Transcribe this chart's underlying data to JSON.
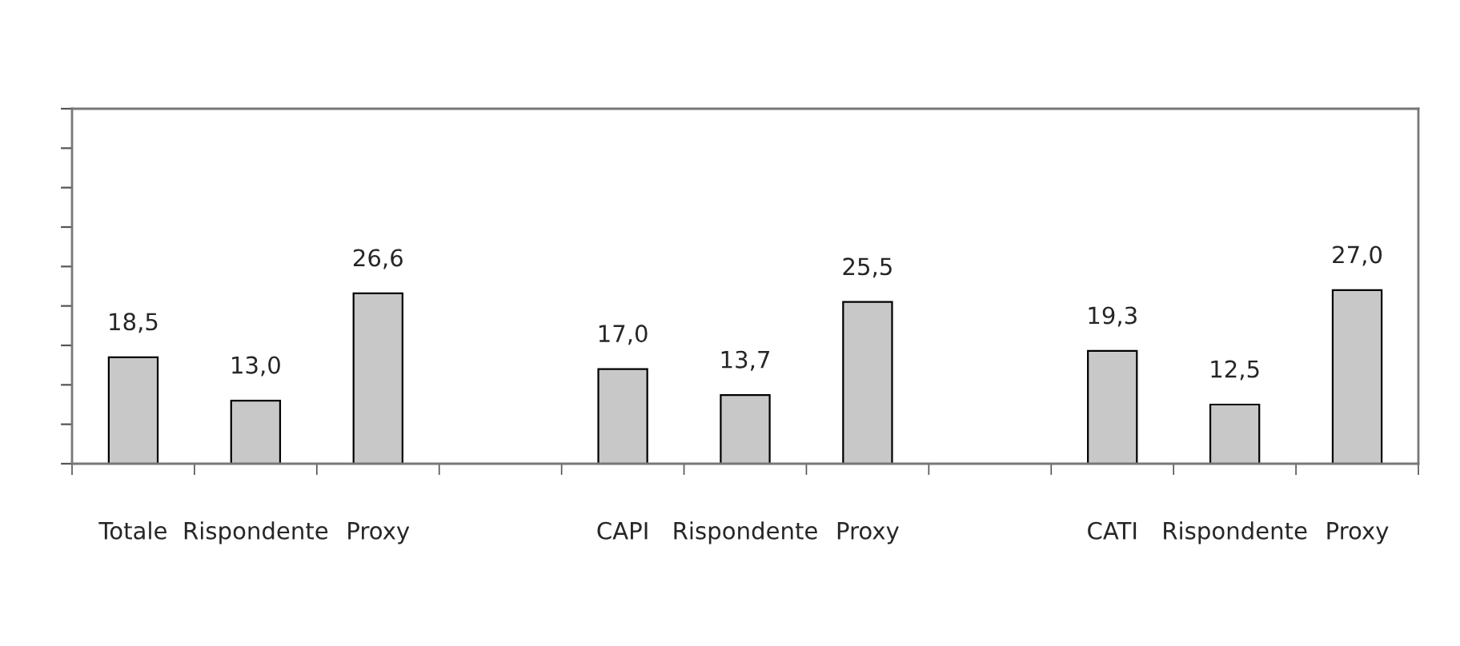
{
  "chart_data": {
    "type": "bar",
    "categories": [
      "Totale",
      "Rispondente",
      "Proxy",
      null,
      "CAPI",
      "Rispondente",
      "Proxy",
      null,
      "CATI",
      "Rispondente",
      "Proxy"
    ],
    "values": [
      18.5,
      13.0,
      26.6,
      null,
      17.0,
      13.7,
      25.5,
      null,
      19.3,
      12.5,
      27.0
    ],
    "value_labels": [
      "18,5",
      "13,0",
      "26,6",
      null,
      "17,0",
      "13,7",
      "25,5",
      null,
      "19,3",
      "12,5",
      "27,0"
    ],
    "color": "#c8c8c8",
    "ylim": [
      5,
      50
    ],
    "yticks": [
      {
        "value": 5,
        "label": null
      },
      {
        "value": 10,
        "label": null
      },
      {
        "value": 15,
        "label": null
      },
      {
        "value": 20,
        "label": null
      },
      {
        "value": 25,
        "label": null
      },
      {
        "value": 30,
        "label": null
      },
      {
        "value": 35,
        "label": null
      },
      {
        "value": 40,
        "label": null
      },
      {
        "value": 45,
        "label": null
      },
      {
        "value": 50,
        "label": null
      }
    ],
    "tick_labels": "x",
    "grid": false,
    "legend": false
  }
}
